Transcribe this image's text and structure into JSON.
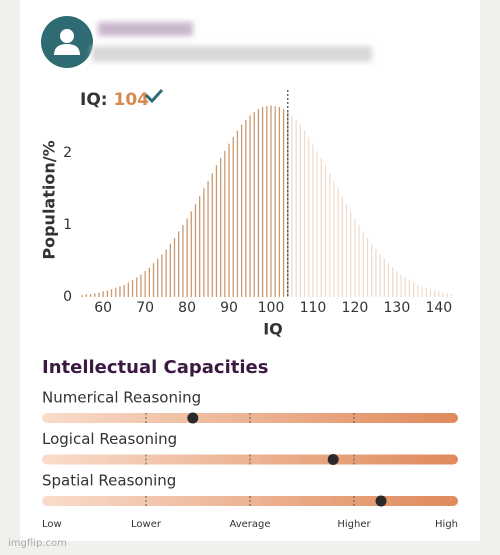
{
  "profile": {
    "watermark": "imgflip.com"
  },
  "chart_data": {
    "type": "bar",
    "score_label": "IQ:",
    "score": 104,
    "xlabel": "IQ",
    "ylabel": "Population/%",
    "x": [
      55,
      56,
      57,
      58,
      59,
      60,
      61,
      62,
      63,
      64,
      65,
      66,
      67,
      68,
      69,
      70,
      71,
      72,
      73,
      74,
      75,
      76,
      77,
      78,
      79,
      80,
      81,
      82,
      83,
      84,
      85,
      86,
      87,
      88,
      89,
      90,
      91,
      92,
      93,
      94,
      95,
      96,
      97,
      98,
      99,
      100,
      101,
      102,
      103,
      104,
      105,
      106,
      107,
      108,
      109,
      110,
      111,
      112,
      113,
      114,
      115,
      116,
      117,
      118,
      119,
      120,
      121,
      122,
      123,
      124,
      125,
      126,
      127,
      128,
      129,
      130,
      131,
      132,
      133,
      134,
      135,
      136,
      137,
      138,
      139,
      140,
      141,
      142,
      143
    ],
    "values": [
      0.03,
      0.04,
      0.04,
      0.05,
      0.06,
      0.08,
      0.09,
      0.11,
      0.13,
      0.15,
      0.17,
      0.2,
      0.24,
      0.27,
      0.31,
      0.36,
      0.41,
      0.47,
      0.53,
      0.59,
      0.66,
      0.74,
      0.82,
      0.91,
      1.0,
      1.09,
      1.19,
      1.29,
      1.4,
      1.51,
      1.61,
      1.72,
      1.83,
      1.93,
      2.03,
      2.13,
      2.22,
      2.31,
      2.39,
      2.46,
      2.52,
      2.57,
      2.61,
      2.64,
      2.65,
      2.66,
      2.65,
      2.64,
      2.61,
      2.57,
      2.52,
      2.46,
      2.39,
      2.31,
      2.22,
      2.13,
      2.03,
      1.93,
      1.83,
      1.72,
      1.61,
      1.51,
      1.4,
      1.29,
      1.19,
      1.09,
      1.0,
      0.91,
      0.82,
      0.74,
      0.66,
      0.59,
      0.53,
      0.47,
      0.41,
      0.36,
      0.31,
      0.27,
      0.24,
      0.2,
      0.17,
      0.15,
      0.13,
      0.11,
      0.09,
      0.08,
      0.06,
      0.05,
      0.04
    ],
    "color_below": "#c99a70",
    "color_above": "#f0dccd",
    "score_color": "#2f4b68",
    "xlim": [
      54,
      146
    ],
    "ylim": [
      0,
      2.8
    ],
    "xticks": [
      60,
      70,
      80,
      90,
      100,
      110,
      120,
      130,
      140
    ],
    "yticks": [
      0,
      1,
      2
    ]
  },
  "capacities": {
    "title": "Intellectual Capacities",
    "range": [
      0,
      4
    ],
    "scale": [
      {
        "value": 0,
        "label": "Low"
      },
      {
        "value": 1,
        "label": "Lower"
      },
      {
        "value": 2,
        "label": "Average"
      },
      {
        "value": 3,
        "label": "Higher"
      },
      {
        "value": 4,
        "label": "High"
      }
    ],
    "items": [
      {
        "name": "Numerical Reasoning",
        "value": 1.45
      },
      {
        "name": "Logical Reasoning",
        "value": 2.8
      },
      {
        "name": "Spatial Reasoning",
        "value": 3.26
      }
    ]
  }
}
